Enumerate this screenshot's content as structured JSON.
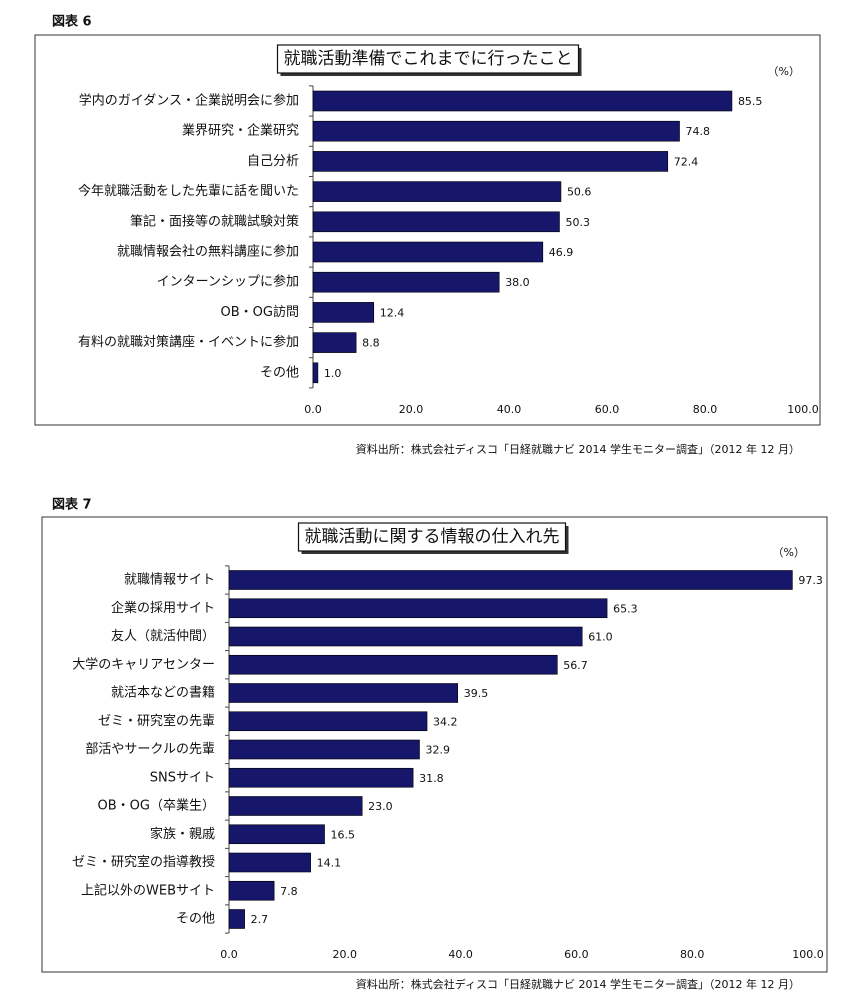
{
  "chart_data": [
    {
      "type": "bar",
      "orientation": "horizontal",
      "figure_label": "図表 6",
      "title": "就職活動準備でこれまでに行ったこと",
      "unit": "（%）",
      "source": "資料出所：株式会社ディスコ「日経就職ナビ 2014 学生モニター調査」（2012 年 12 月）",
      "categories": [
        "学内のガイダンス・企業説明会に参加",
        "業界研究・企業研究",
        "自己分析",
        "今年就職活動をした先輩に話を聞いた",
        "筆記・面接等の就職試験対策",
        "就職情報会社の無料講座に参加",
        "インターンシップに参加",
        "OB・OG訪問",
        "有料の就職対策講座・イベントに参加",
        "その他"
      ],
      "values": [
        85.5,
        74.8,
        72.4,
        50.6,
        50.3,
        46.9,
        38.0,
        12.4,
        8.8,
        1.0
      ],
      "value_labels": [
        "85.5",
        "74.8",
        "72.4",
        "50.6",
        "50.3",
        "46.9",
        "38.0",
        "12.4",
        "8.8",
        "1.0"
      ],
      "color": "#16166b",
      "xlim": [
        0,
        100
      ],
      "xticks": [
        {
          "value": 0,
          "label": "0.0"
        },
        {
          "value": 20,
          "label": "20.0"
        },
        {
          "value": 40,
          "label": "40.0"
        },
        {
          "value": 60,
          "label": "60.0"
        },
        {
          "value": 80,
          "label": "80.0"
        },
        {
          "value": 100,
          "label": "100.0"
        }
      ]
    },
    {
      "type": "bar",
      "orientation": "horizontal",
      "figure_label": "図表 7",
      "title": "就職活動に関する情報の仕入れ先",
      "unit": "（%）",
      "source": "資料出所：株式会社ディスコ「日経就職ナビ 2014 学生モニター調査」（2012 年 12 月）",
      "categories": [
        "就職情報サイト",
        "企業の採用サイト",
        "友人（就活仲間）",
        "大学のキャリアセンター",
        "就活本などの書籍",
        "ゼミ・研究室の先輩",
        "部活やサークルの先輩",
        "SNSサイト",
        "OB・OG（卒業生）",
        "家族・親戚",
        "ゼミ・研究室の指導教授",
        "上記以外のWEBサイト",
        "その他"
      ],
      "values": [
        97.3,
        65.3,
        61.0,
        56.7,
        39.5,
        34.2,
        32.9,
        31.8,
        23.0,
        16.5,
        14.1,
        7.8,
        2.7
      ],
      "value_labels": [
        "97.3",
        "65.3",
        "61.0",
        "56.7",
        "39.5",
        "34.2",
        "32.9",
        "31.8",
        "23.0",
        "16.5",
        "14.1",
        "7.8",
        "2.7"
      ],
      "color": "#16166b",
      "xlim": [
        0,
        100
      ],
      "xticks": [
        {
          "value": 0,
          "label": "0.0"
        },
        {
          "value": 20,
          "label": "20.0"
        },
        {
          "value": 40,
          "label": "40.0"
        },
        {
          "value": 60,
          "label": "60.0"
        },
        {
          "value": 80,
          "label": "80.0"
        },
        {
          "value": 100,
          "label": "100.0"
        }
      ]
    }
  ]
}
